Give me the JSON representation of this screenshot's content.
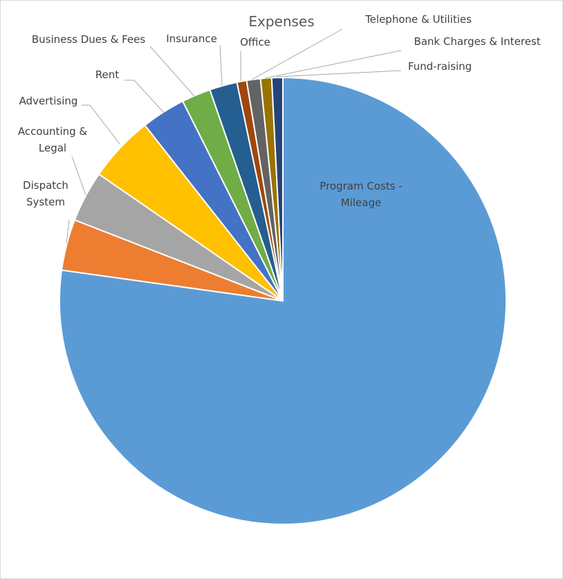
{
  "chart_data": {
    "type": "pie",
    "title": "Expenses",
    "categories": [
      "Program Costs - Mileage",
      "Dispatch System",
      "Accounting & Legal",
      "Advertising",
      "Rent",
      "Business Dues & Fees",
      "Insurance",
      "Office",
      "Telephone & Utilities",
      "Bank Charges & Interest",
      "Fund-raising"
    ],
    "values": [
      77.2,
      3.7,
      3.7,
      4.8,
      3.2,
      2.1,
      2.0,
      0.7,
      1.0,
      0.8,
      0.8
    ],
    "colors": [
      "#5b9bd5",
      "#ed7d31",
      "#a5a5a5",
      "#ffc000",
      "#4472c4",
      "#70ad47",
      "#255e91",
      "#9e480e",
      "#636363",
      "#997300",
      "#264478"
    ]
  }
}
